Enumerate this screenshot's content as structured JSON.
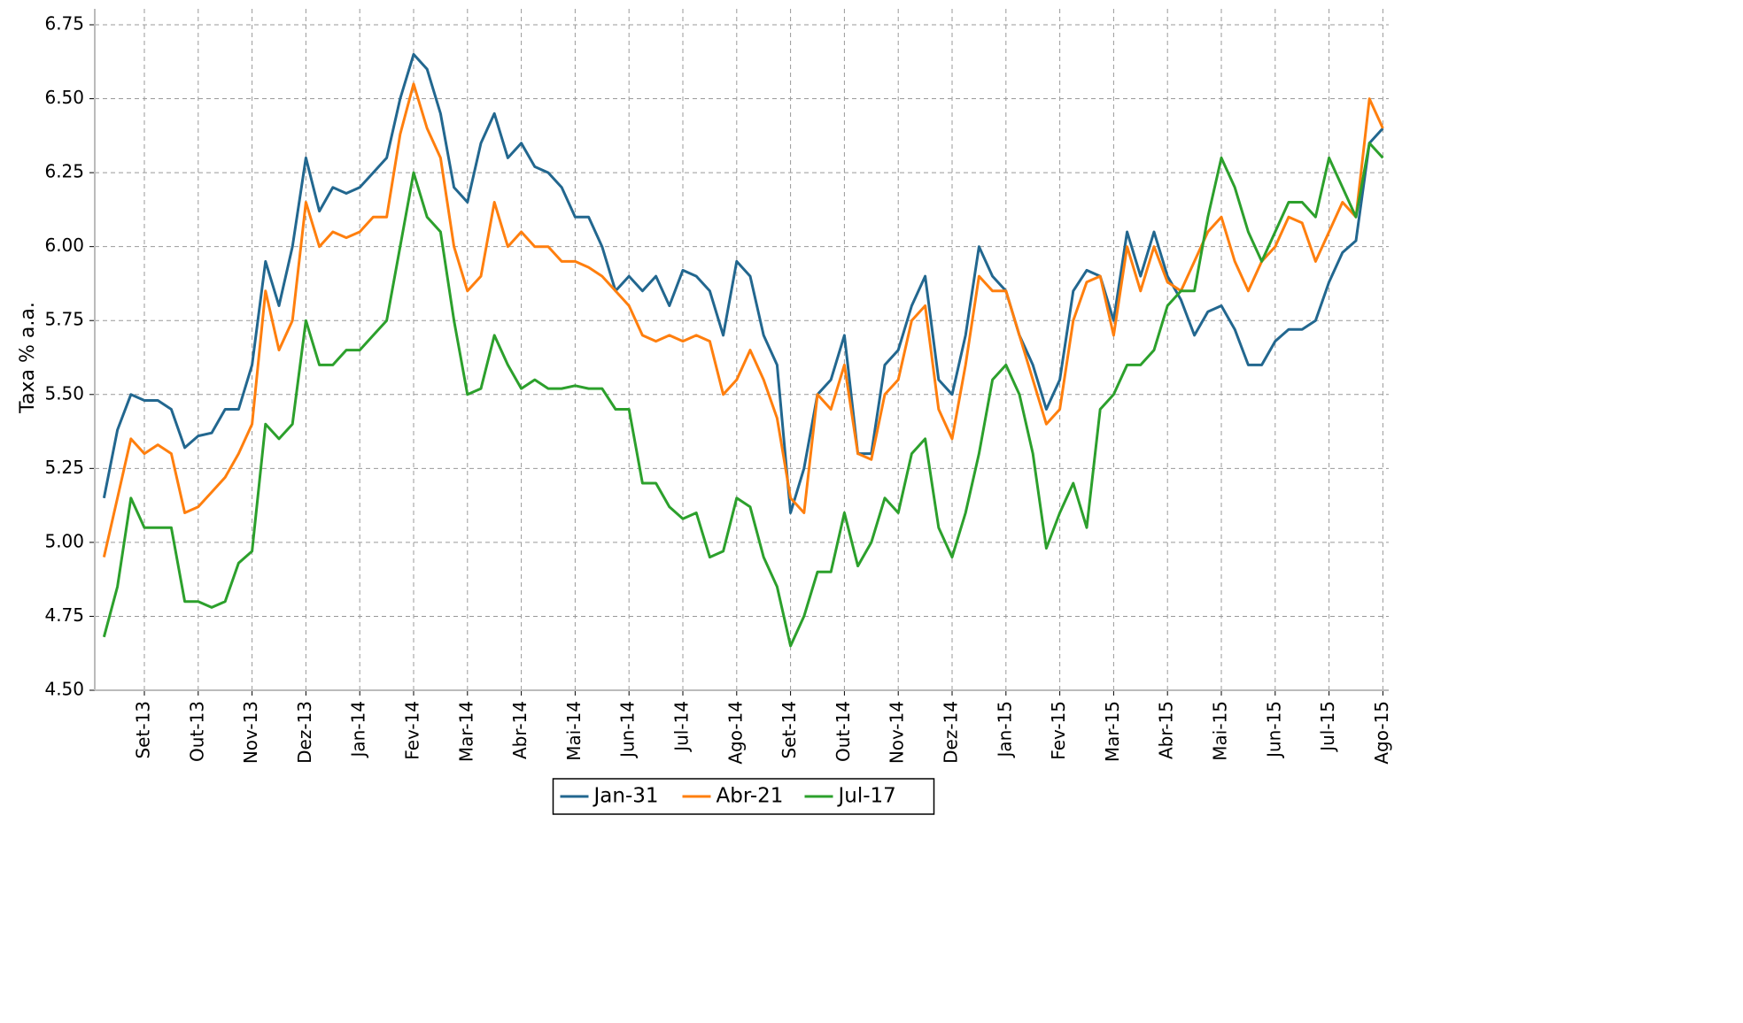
{
  "chart_data": {
    "type": "line",
    "y_label": "Taxa % a.a.",
    "categories": [
      null,
      null,
      null,
      "Set-13",
      null,
      null,
      null,
      "Out-13",
      null,
      null,
      null,
      "Nov-13",
      null,
      null,
      null,
      "Dez-13",
      null,
      null,
      null,
      "Jan-14",
      null,
      null,
      null,
      "Fev-14",
      null,
      null,
      null,
      "Mar-14",
      null,
      null,
      null,
      "Abr-14",
      null,
      null,
      null,
      "Mai-14",
      null,
      null,
      null,
      "Jun-14",
      null,
      null,
      null,
      "Jul-14",
      null,
      null,
      null,
      "Ago-14",
      null,
      null,
      null,
      "Set-14",
      null,
      null,
      null,
      "Out-14",
      null,
      null,
      null,
      "Nov-14",
      null,
      null,
      null,
      "Dez-14",
      null,
      null,
      null,
      "Jan-15",
      null,
      null,
      null,
      "Fev-15",
      null,
      null,
      null,
      "Mar-15",
      null,
      null,
      null,
      "Abr-15",
      null,
      null,
      null,
      "Mai-15",
      null,
      null,
      null,
      "Jun-15",
      null,
      null,
      null,
      "Jul-15",
      null,
      null,
      null,
      "Ago-15"
    ],
    "series": [
      {
        "name": "Jan-31",
        "color": "#22678f",
        "values": [
          5.15,
          5.38,
          5.5,
          5.48,
          5.48,
          5.45,
          5.32,
          5.36,
          5.37,
          5.45,
          5.45,
          5.6,
          5.95,
          5.8,
          6.0,
          6.3,
          6.12,
          6.2,
          6.18,
          6.2,
          6.25,
          6.3,
          6.5,
          6.65,
          6.6,
          6.45,
          6.2,
          6.15,
          6.35,
          6.45,
          6.3,
          6.35,
          6.27,
          6.25,
          6.2,
          6.1,
          6.1,
          6.0,
          5.85,
          5.9,
          5.85,
          5.9,
          5.8,
          5.92,
          5.9,
          5.85,
          5.7,
          5.95,
          5.9,
          5.7,
          5.6,
          5.1,
          5.25,
          5.5,
          5.55,
          5.7,
          5.3,
          5.3,
          5.6,
          5.65,
          5.8,
          5.9,
          5.55,
          5.5,
          5.7,
          6.0,
          5.9,
          5.85,
          5.7,
          5.6,
          5.45,
          5.55,
          5.85,
          5.92,
          5.9,
          5.75,
          6.05,
          5.9,
          6.05,
          5.9,
          5.82,
          5.7,
          5.78,
          5.8,
          5.72,
          5.6,
          5.6,
          5.68,
          5.72,
          5.72,
          5.75,
          5.88,
          5.98,
          6.02,
          6.35,
          6.4
        ]
      },
      {
        "name": "Abr-21",
        "color": "#ff7f0e",
        "values": [
          4.95,
          5.15,
          5.35,
          5.3,
          5.33,
          5.3,
          5.1,
          5.12,
          5.17,
          5.22,
          5.3,
          5.4,
          5.85,
          5.65,
          5.75,
          6.15,
          6.0,
          6.05,
          6.03,
          6.05,
          6.1,
          6.1,
          6.38,
          6.55,
          6.4,
          6.3,
          6.0,
          5.85,
          5.9,
          6.15,
          6.0,
          6.05,
          6.0,
          6.0,
          5.95,
          5.95,
          5.93,
          5.9,
          5.85,
          5.8,
          5.7,
          5.68,
          5.7,
          5.68,
          5.7,
          5.68,
          5.5,
          5.55,
          5.65,
          5.55,
          5.42,
          5.15,
          5.1,
          5.5,
          5.45,
          5.6,
          5.3,
          5.28,
          5.5,
          5.55,
          5.75,
          5.8,
          5.45,
          5.35,
          5.6,
          5.9,
          5.85,
          5.85,
          5.7,
          5.55,
          5.4,
          5.45,
          5.75,
          5.88,
          5.9,
          5.7,
          6.0,
          5.85,
          6.0,
          5.88,
          5.85,
          5.95,
          6.05,
          6.1,
          5.95,
          5.85,
          5.95,
          6.0,
          6.1,
          6.08,
          5.95,
          6.05,
          6.15,
          6.1,
          6.5,
          6.4
        ]
      },
      {
        "name": "Jul-17",
        "color": "#2ca02c",
        "values": [
          4.68,
          4.85,
          5.15,
          5.05,
          5.05,
          5.05,
          4.8,
          4.8,
          4.78,
          4.8,
          4.93,
          4.97,
          5.4,
          5.35,
          5.4,
          5.75,
          5.6,
          5.6,
          5.65,
          5.65,
          5.7,
          5.75,
          6.0,
          6.25,
          6.1,
          6.05,
          5.75,
          5.5,
          5.52,
          5.7,
          5.6,
          5.52,
          5.55,
          5.52,
          5.52,
          5.53,
          5.52,
          5.52,
          5.45,
          5.45,
          5.2,
          5.2,
          5.12,
          5.08,
          5.1,
          4.95,
          4.97,
          5.15,
          5.12,
          4.95,
          4.85,
          4.65,
          4.75,
          4.9,
          4.9,
          5.1,
          4.92,
          5.0,
          5.15,
          5.1,
          5.3,
          5.35,
          5.05,
          4.95,
          5.1,
          5.3,
          5.55,
          5.6,
          5.5,
          5.3,
          4.98,
          5.1,
          5.2,
          5.05,
          5.45,
          5.5,
          5.6,
          5.6,
          5.65,
          5.8,
          5.85,
          5.85,
          6.1,
          6.3,
          6.2,
          6.05,
          5.95,
          6.05,
          6.15,
          6.15,
          6.1,
          6.3,
          6.2,
          6.1,
          6.35,
          6.3
        ]
      }
    ],
    "ylim": [
      4.5,
      6.75
    ],
    "yticks": [
      {
        "value": 4.5,
        "label": "4.50"
      },
      4.75,
      {
        "value": 5,
        "label": "5.00"
      },
      5.25,
      {
        "value": 5.5,
        "label": "5.50"
      },
      5.75,
      {
        "value": 6,
        "label": "6.00"
      },
      6.25,
      {
        "value": 6.5,
        "label": "6.50"
      },
      6.75
    ],
    "grid": true,
    "legend": "bottom"
  }
}
